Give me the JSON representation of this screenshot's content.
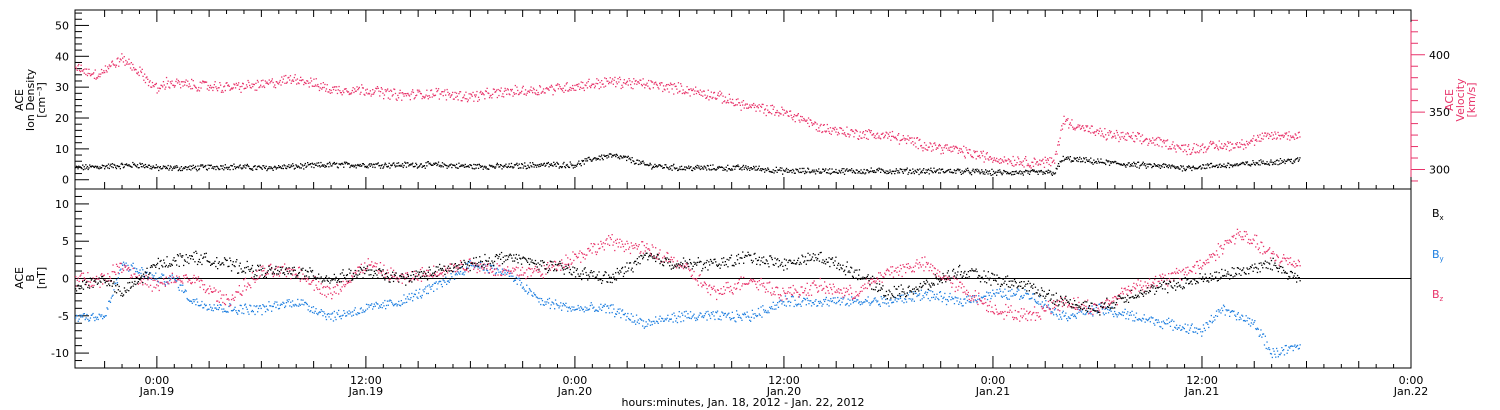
{
  "colors": {
    "black": "#000000",
    "pink": "#e8336a",
    "blue": "#1f7fe0"
  },
  "x_axis": {
    "label": "hours:minutes, Jan. 18, 2012 - Jan. 22, 2012",
    "range_hours": [
      -4.7,
      72.0
    ],
    "ticks": [
      {
        "hours": 0,
        "time": "0:00",
        "date": "Jan.19"
      },
      {
        "hours": 12,
        "time": "12:00",
        "date": "Jan.19"
      },
      {
        "hours": 24,
        "time": "0:00",
        "date": "Jan.20"
      },
      {
        "hours": 36,
        "time": "12:00",
        "date": "Jan.20"
      },
      {
        "hours": 48,
        "time": "0:00",
        "date": "Jan.21"
      },
      {
        "hours": 60,
        "time": "12:00",
        "date": "Jan.21"
      },
      {
        "hours": 72,
        "time": "0:00",
        "date": "Jan.22"
      }
    ]
  },
  "panel_top": {
    "left_axis_label": [
      "ACE",
      "Ion Density",
      "[cm⁻³]"
    ],
    "right_axis_label": [
      "ACE",
      "Velocity",
      "[km/s]"
    ],
    "left_range": [
      -3,
      55
    ],
    "left_ticks": [
      "0",
      "10",
      "20",
      "30",
      "40",
      "50"
    ],
    "left_tick_values": [
      0,
      10,
      20,
      30,
      40,
      50
    ],
    "right_range": [
      283,
      439
    ],
    "right_ticks": [
      "300",
      "350",
      "400"
    ],
    "right_tick_values": [
      300,
      350,
      400
    ]
  },
  "panel_bottom": {
    "left_axis_label": [
      "ACE",
      "B",
      "[nT]"
    ],
    "range": [
      -12,
      12
    ],
    "ticks": [
      "-10",
      "-5",
      "0",
      "5",
      "10"
    ],
    "tick_values": [
      -10,
      -5,
      0,
      5,
      10
    ],
    "components": [
      {
        "label": "B",
        "sub": "x",
        "color": "#000000"
      },
      {
        "label": "B",
        "sub": "y",
        "color": "#1f7fe0"
      },
      {
        "label": "B",
        "sub": "z",
        "color": "#e8336a"
      }
    ]
  },
  "chart_data": [
    {
      "type": "scatter",
      "xlabel": "hours:minutes, Jan. 18, 2012 - Jan. 22, 2012",
      "ylabel": "ACE Ion Density [cm⁻³]",
      "ylim": [
        -3,
        55
      ],
      "series": [
        {
          "name": "ACE Ion Density",
          "color": "#000000",
          "x_hours": [
            -4.7,
            -3,
            -1,
            0,
            2,
            4,
            6,
            8,
            10,
            12,
            14,
            16,
            18,
            20,
            22,
            24,
            25,
            26,
            27,
            28,
            30,
            32,
            34,
            36,
            38,
            40,
            42,
            44,
            46,
            48,
            50,
            51.5,
            52,
            54,
            56,
            58,
            59,
            60,
            62,
            64,
            65.6
          ],
          "values": [
            4,
            4.5,
            5,
            4,
            4,
            4.5,
            4,
            4.5,
            5,
            5,
            5,
            5,
            4.5,
            4.5,
            5,
            5,
            7,
            8,
            7,
            5,
            4,
            4,
            4,
            3,
            3,
            3,
            3,
            3,
            3,
            2.5,
            2.5,
            2.5,
            7,
            6,
            5,
            4.5,
            4,
            4.5,
            5,
            6,
            6.5
          ]
        }
      ]
    },
    {
      "type": "scatter",
      "ylabel": "ACE Velocity [km/s]",
      "ylim": [
        283,
        439
      ],
      "series": [
        {
          "name": "ACE Velocity",
          "color": "#e8336a",
          "x_hours": [
            -4.7,
            -3.5,
            -2,
            -1,
            0,
            0.5,
            2,
            4,
            6,
            8,
            10,
            12,
            14,
            16,
            18,
            20,
            22,
            24,
            26,
            28,
            30,
            32,
            34,
            36,
            37,
            38,
            40,
            42,
            44,
            46,
            48,
            50,
            51.5,
            52,
            54,
            56,
            58,
            59,
            60,
            62,
            64,
            65.6
          ],
          "values": [
            390,
            383,
            397,
            385,
            370,
            376,
            374,
            372,
            374,
            380,
            370,
            370,
            365,
            367,
            364,
            368,
            370,
            373,
            377,
            375,
            371,
            365,
            355,
            350,
            345,
            337,
            332,
            330,
            322,
            317,
            310,
            307,
            307,
            343,
            332,
            328,
            323,
            318,
            320,
            322,
            330,
            330
          ]
        }
      ]
    },
    {
      "type": "scatter",
      "xlabel": "hours:minutes, Jan. 18, 2012 - Jan. 22, 2012",
      "ylabel": "ACE B [nT]",
      "ylim": [
        -12,
        12
      ],
      "series": [
        {
          "name": "Bx",
          "color": "#000000",
          "x_hours": [
            -4.7,
            -3,
            -2,
            -1,
            0,
            2,
            4,
            6,
            8,
            10,
            12,
            14,
            16,
            18,
            20,
            22,
            24,
            26,
            28,
            30,
            32,
            34,
            36,
            38,
            40,
            42,
            44,
            46,
            48,
            50,
            52,
            54,
            56,
            58,
            60,
            62,
            64,
            65.6
          ],
          "values": [
            -1,
            0,
            -2,
            0,
            2,
            3,
            2,
            1,
            1,
            0,
            1,
            0,
            1,
            2,
            3,
            2,
            1,
            0,
            3,
            2,
            2,
            3,
            2,
            3,
            1,
            -2,
            -1,
            1,
            0,
            -1,
            -3,
            -4,
            -2,
            -1,
            0,
            1,
            2,
            0
          ]
        },
        {
          "name": "By",
          "color": "#1f7fe0",
          "x_hours": [
            -4.7,
            -3,
            -2,
            -1,
            0,
            1,
            2,
            4,
            6,
            8,
            10,
            12,
            14,
            16,
            18,
            20,
            22,
            24,
            26,
            28,
            30,
            32,
            34,
            36,
            38,
            40,
            42,
            44,
            46,
            48,
            50,
            52,
            54,
            56,
            58,
            60,
            61,
            62,
            63,
            64,
            65.6
          ],
          "values": [
            -5,
            -5,
            2,
            1,
            0,
            0,
            -3,
            -4,
            -4,
            -3,
            -5,
            -4,
            -3,
            -1,
            2,
            1,
            -3,
            -4,
            -4,
            -6,
            -5,
            -5,
            -5,
            -3,
            -3,
            -3,
            -3,
            -2,
            -3,
            -2,
            -2,
            -5,
            -4,
            -5,
            -6,
            -7,
            -4,
            -5,
            -6,
            -10,
            -9
          ]
        },
        {
          "name": "Bz",
          "color": "#e8336a",
          "x_hours": [
            -4.7,
            -3,
            -2,
            -1,
            0,
            1,
            2,
            4,
            6,
            8,
            10,
            12,
            14,
            16,
            18,
            20,
            22,
            24,
            26,
            28,
            30,
            32,
            34,
            36,
            38,
            40,
            42,
            44,
            46,
            48,
            50,
            52,
            54,
            56,
            58,
            60,
            61,
            62,
            63,
            64,
            65.6
          ],
          "values": [
            0,
            0,
            2,
            0,
            -1,
            0,
            0,
            -3,
            1,
            1,
            -2,
            2,
            0,
            1,
            2,
            1,
            1,
            3,
            5,
            4,
            2,
            -2,
            0,
            -2,
            -1,
            -2,
            1,
            2,
            -1,
            -4,
            -5,
            -3,
            -4,
            -1,
            0,
            2,
            4,
            6,
            5,
            3,
            2
          ]
        }
      ]
    }
  ]
}
